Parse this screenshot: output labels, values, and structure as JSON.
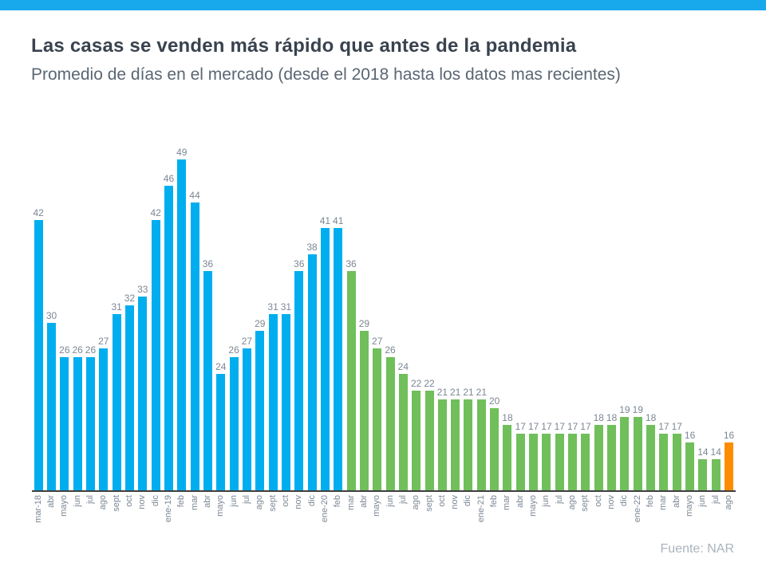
{
  "header": {
    "title": "Las casas se venden más rápido que antes de la pandemia",
    "subtitle": "Promedio de días en el mercado (desde el 2018 hasta los datos mas recientes)"
  },
  "footer": {
    "source": "Fuente: NAR"
  },
  "colors": {
    "header_stripe": "#18A8EC",
    "bar_blue": "#00AEEF",
    "bar_green": "#70BF5B",
    "bar_orange": "#FF8C00",
    "axis_line": "#3F3F3F",
    "label_gray": "#7B8794",
    "title_text": "#39434F",
    "subtitle_text": "#5A6673",
    "source_text": "#A9B3BD"
  },
  "chart_data": {
    "type": "bar",
    "title": "Las casas se venden más rápido que antes de la pandemia",
    "subtitle": "Promedio de días en el mercado (desde el 2018 hasta los datos mas recientes)",
    "xlabel": "",
    "ylabel": "",
    "unit": "días",
    "grid": false,
    "legend": "none",
    "value_labels": true,
    "y_axis_hidden": true,
    "ylim": [
      10.4,
      51
    ],
    "categories": [
      "mar-18",
      "abr",
      "mayo",
      "jun",
      "jul",
      "ago",
      "sept",
      "oct",
      "nov",
      "dic",
      "ene-19",
      "feb",
      "mar",
      "abr",
      "mayo",
      "jun",
      "jul",
      "ago",
      "sept",
      "oct",
      "nov",
      "dic",
      "ene-20",
      "feb",
      "mar",
      "abr",
      "mayo",
      "jun",
      "jul",
      "ago",
      "sept",
      "oct",
      "nov",
      "dic",
      "ene-21",
      "feb",
      "mar",
      "abr",
      "mayo",
      "jun",
      "jul",
      "ago",
      "sept",
      "oct",
      "nov",
      "dic",
      "ene-22",
      "feb",
      "mar",
      "abr",
      "mayo",
      "jun",
      "jul",
      "ago"
    ],
    "values": [
      42,
      30,
      26,
      26,
      26,
      27,
      31,
      32,
      33,
      42,
      46,
      49,
      44,
      36,
      24,
      26,
      27,
      29,
      31,
      31,
      36,
      38,
      41,
      41,
      36,
      29,
      27,
      26,
      24,
      22,
      22,
      21,
      21,
      21,
      21,
      20,
      18,
      17,
      17,
      17,
      17,
      17,
      17,
      18,
      18,
      19,
      19,
      18,
      17,
      17,
      16,
      14,
      14,
      16
    ],
    "segments": [
      {
        "name": "blue",
        "start_index": 0,
        "end_index": 23,
        "color": "#00AEEF"
      },
      {
        "name": "green",
        "start_index": 24,
        "end_index": 52,
        "color": "#70BF5B"
      },
      {
        "name": "orange",
        "start_index": 53,
        "end_index": 53,
        "color": "#FF8C00"
      }
    ],
    "source": "Fuente: NAR"
  }
}
